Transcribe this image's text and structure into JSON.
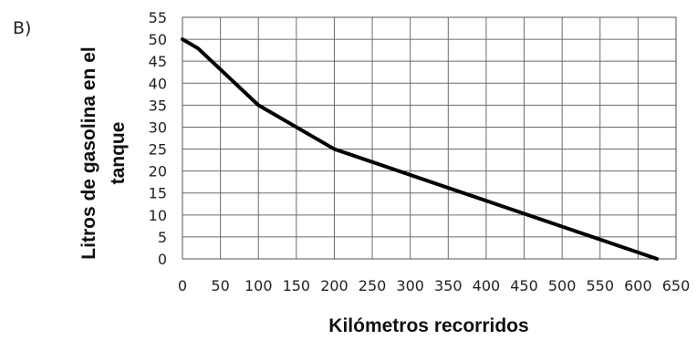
{
  "panel_label": "B)",
  "chart_data": {
    "type": "line",
    "title": "",
    "xlabel": "Kilómetros recorridos",
    "ylabel_lines": [
      "Litros de gasolina en el",
      "tanque"
    ],
    "xlim": [
      0,
      650
    ],
    "ylim": [
      0,
      55
    ],
    "x_ticks": [
      "0",
      "50",
      "100",
      "150",
      "200",
      "250",
      "300",
      "350",
      "400",
      "450",
      "500",
      "550",
      "600",
      "650"
    ],
    "y_ticks": [
      "0",
      "5",
      "10",
      "15",
      "20",
      "25",
      "30",
      "35",
      "40",
      "45",
      "50",
      "55"
    ],
    "grid": true,
    "legend": "none",
    "series": [
      {
        "color": "#000000",
        "points": [
          {
            "x": 0,
            "y": 50
          },
          {
            "x": 20,
            "y": 48
          },
          {
            "x": 100,
            "y": 35
          },
          {
            "x": 200,
            "y": 25
          },
          {
            "x": 625,
            "y": 0
          }
        ]
      }
    ]
  }
}
